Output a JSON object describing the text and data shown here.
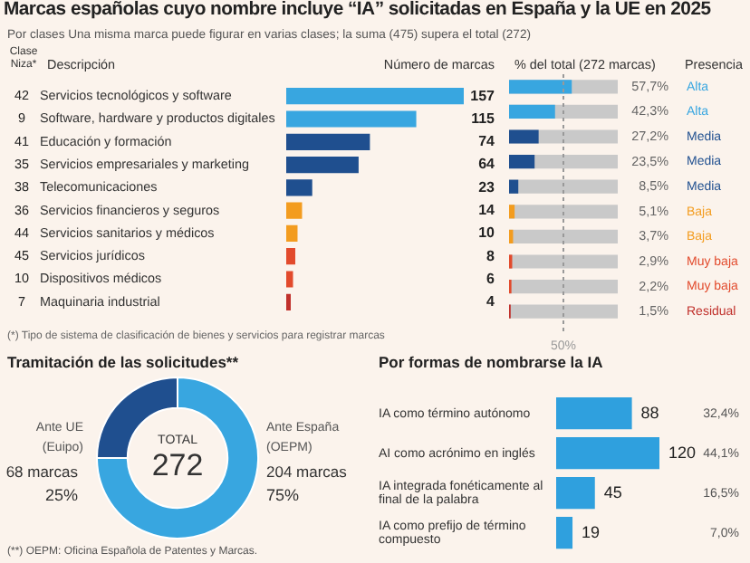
{
  "chart_data": [
    {
      "type": "bar",
      "orientation": "horizontal",
      "title": "Marcas españolas cuyo nombre incluye “IA” solicitadas en España y la UE en 2025",
      "subtitle": "Por clases Una misma marca puede figurar en varias clases; la suma (475) supera el total (272)",
      "xlabel": "Número de marcas",
      "categories": [
        "Servicios tecnológicos y software",
        "Software, hardware y productos digitales",
        "Educación y formación",
        "Servicios empresariales y marketing",
        "Telecomunicaciones",
        "Servicios financieros y seguros",
        "Servicios sanitarios y médicos",
        "Servicios jurídicos",
        "Dispositivos médicos",
        "Maquinaria industrial"
      ],
      "values": [
        157,
        115,
        74,
        64,
        23,
        14,
        10,
        8,
        6,
        4
      ],
      "colors": [
        "#38a6e0",
        "#38a6e0",
        "#1f4f8f",
        "#1f4f8f",
        "#1f4f8f",
        "#f39c1f",
        "#f39c1f",
        "#e24a2c",
        "#e24a2c",
        "#c0302b"
      ],
      "data_labels": true,
      "annotations": [
        "Clase Niza*",
        "Descripción",
        "(*) Tipo de sistema de clasificación de bienes y servicios para registrar marcas",
        "42",
        "9",
        "41",
        "35",
        "38",
        "36",
        "44",
        "45",
        "10",
        "7"
      ]
    },
    {
      "type": "bar",
      "orientation": "horizontal",
      "xlabel": "% del total (272 marcas)",
      "categories": [
        null,
        null,
        null,
        null,
        null,
        null,
        null,
        null,
        null,
        null
      ],
      "values": [
        57.7,
        42.3,
        27.2,
        23.5,
        8.5,
        5.1,
        3.7,
        2.9,
        2.2,
        1.5
      ],
      "value_labels": [
        "57,7%",
        "42,3%",
        "27,2%",
        "23,5%",
        "8,5%",
        "5,1%",
        "3,7%",
        "2,9%",
        "2,2%",
        "1,5%"
      ],
      "colors": [
        "#38a6e0",
        "#38a6e0",
        "#1f4f8f",
        "#1f4f8f",
        "#1f4f8f",
        "#f39c1f",
        "#f39c1f",
        "#e24a2c",
        "#e24a2c",
        "#c0302b"
      ],
      "xlim": [
        0,
        100
      ],
      "tick_labels": false,
      "ref_lines": [
        {
          "axis": "x",
          "value": 50,
          "label": "50%",
          "line_style": "dashed",
          "color": "#999999"
        }
      ],
      "annotations": [
        "Presencia",
        "Alta",
        "Alta",
        "Media",
        "Media",
        "Media",
        "Baja",
        "Baja",
        "Muy baja",
        "Muy baja",
        "Residual"
      ]
    },
    {
      "type": "donut",
      "title": "Tramitación de las solicitudes**",
      "categories": [
        "Ante UE (Euipo)",
        "Ante España (OEPM)"
      ],
      "values": [
        68,
        204
      ],
      "colors": [
        "#1f4f8f",
        "#38a6e0"
      ],
      "value_labels": [
        "68 marcas",
        "204 marcas"
      ],
      "annotations": [
        "TOTAL",
        "272",
        "25%",
        "75%",
        "(**) OEPM: Oficina Española de Patentes y Marcas."
      ]
    },
    {
      "type": "bar",
      "orientation": "horizontal",
      "title": "Por formas de nombrarse la IA",
      "categories": [
        "IA como término autónomo",
        "AI como acrónimo en inglés",
        "IA integrada fonéticamente al final de la palabra",
        "IA como prefijo de término compuesto"
      ],
      "values": [
        88,
        120,
        45,
        19
      ],
      "colors": [
        "#2fa0de",
        "#2fa0de",
        "#2fa0de",
        "#2fa0de"
      ],
      "data_labels": true,
      "annotations": [
        "32,4%",
        "44,1%",
        "16,5%",
        "7,0%"
      ]
    }
  ]
}
